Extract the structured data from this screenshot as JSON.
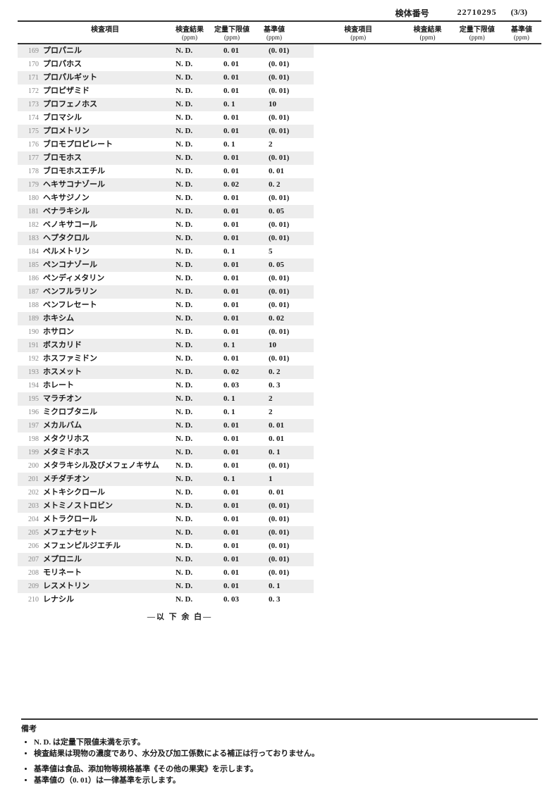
{
  "header": {
    "sampleLabel": "検体番号",
    "sampleNumber": "22710295",
    "page": "(3/3)"
  },
  "colHeaders": {
    "item": "検査項目",
    "result": "検査結果",
    "resultUnit": "(ppm)",
    "lower": "定量下限値",
    "lowerUnit": "(ppm)",
    "std": "基準値",
    "stdUnit": "(ppm)"
  },
  "blankEnd": "―以 下 余 白―",
  "rows": [
    {
      "n": "169",
      "name": "プロパニル",
      "res": "N. D.",
      "low": "0. 01",
      "std": "(0. 01)"
    },
    {
      "n": "170",
      "name": "プロパホス",
      "res": "N. D.",
      "low": "0. 01",
      "std": "(0. 01)"
    },
    {
      "n": "171",
      "name": "プロパルギット",
      "res": "N. D.",
      "low": "0. 01",
      "std": "(0. 01)"
    },
    {
      "n": "172",
      "name": "プロピザミド",
      "res": "N. D.",
      "low": "0. 01",
      "std": "(0. 01)"
    },
    {
      "n": "173",
      "name": "プロフェノホス",
      "res": "N. D.",
      "low": "0. 1",
      "std": "10"
    },
    {
      "n": "174",
      "name": "ブロマシル",
      "res": "N. D.",
      "low": "0. 01",
      "std": "(0. 01)"
    },
    {
      "n": "175",
      "name": "プロメトリン",
      "res": "N. D.",
      "low": "0. 01",
      "std": "(0. 01)"
    },
    {
      "n": "176",
      "name": "ブロモプロピレート",
      "res": "N. D.",
      "low": "0. 1",
      "std": "2"
    },
    {
      "n": "177",
      "name": "ブロモホス",
      "res": "N. D.",
      "low": "0. 01",
      "std": "(0. 01)"
    },
    {
      "n": "178",
      "name": "ブロモホスエチル",
      "res": "N. D.",
      "low": "0. 01",
      "std": "0. 01"
    },
    {
      "n": "179",
      "name": "ヘキサコナゾール",
      "res": "N. D.",
      "low": "0. 02",
      "std": "0. 2"
    },
    {
      "n": "180",
      "name": "ヘキサジノン",
      "res": "N. D.",
      "low": "0. 01",
      "std": "(0. 01)"
    },
    {
      "n": "181",
      "name": "ベナラキシル",
      "res": "N. D.",
      "low": "0. 01",
      "std": "0. 05"
    },
    {
      "n": "182",
      "name": "ベノキサコール",
      "res": "N. D.",
      "low": "0. 01",
      "std": "(0. 01)"
    },
    {
      "n": "183",
      "name": "ヘプタクロル",
      "res": "N. D.",
      "low": "0. 01",
      "std": "(0. 01)"
    },
    {
      "n": "184",
      "name": "ペルメトリン",
      "res": "N. D.",
      "low": "0. 1",
      "std": "5"
    },
    {
      "n": "185",
      "name": "ペンコナゾール",
      "res": "N. D.",
      "low": "0. 01",
      "std": "0. 05"
    },
    {
      "n": "186",
      "name": "ペンディメタリン",
      "res": "N. D.",
      "low": "0. 01",
      "std": "(0. 01)"
    },
    {
      "n": "187",
      "name": "ベンフルラリン",
      "res": "N. D.",
      "low": "0. 01",
      "std": "(0. 01)"
    },
    {
      "n": "188",
      "name": "ベンフレセート",
      "res": "N. D.",
      "low": "0. 01",
      "std": "(0. 01)"
    },
    {
      "n": "189",
      "name": "ホキシム",
      "res": "N. D.",
      "low": "0. 01",
      "std": "0. 02"
    },
    {
      "n": "190",
      "name": "ホサロン",
      "res": "N. D.",
      "low": "0. 01",
      "std": "(0. 01)"
    },
    {
      "n": "191",
      "name": "ボスカリド",
      "res": "N. D.",
      "low": "0. 1",
      "std": "10"
    },
    {
      "n": "192",
      "name": "ホスファミドン",
      "res": "N. D.",
      "low": "0. 01",
      "std": "(0. 01)"
    },
    {
      "n": "193",
      "name": "ホスメット",
      "res": "N. D.",
      "low": "0. 02",
      "std": "0. 2"
    },
    {
      "n": "194",
      "name": "ホレート",
      "res": "N. D.",
      "low": "0. 03",
      "std": "0. 3"
    },
    {
      "n": "195",
      "name": "マラチオン",
      "res": "N. D.",
      "low": "0. 1",
      "std": "2"
    },
    {
      "n": "196",
      "name": "ミクロブタニル",
      "res": "N. D.",
      "low": "0. 1",
      "std": "2"
    },
    {
      "n": "197",
      "name": "メカルバム",
      "res": "N. D.",
      "low": "0. 01",
      "std": "0. 01"
    },
    {
      "n": "198",
      "name": "メタクリホス",
      "res": "N. D.",
      "low": "0. 01",
      "std": "0. 01"
    },
    {
      "n": "199",
      "name": "メタミドホス",
      "res": "N. D.",
      "low": "0. 01",
      "std": "0. 1"
    },
    {
      "n": "200",
      "name": "メタラキシル及びメフェノキサム",
      "res": "N. D.",
      "low": "0. 01",
      "std": "(0. 01)"
    },
    {
      "n": "201",
      "name": "メチダチオン",
      "res": "N. D.",
      "low": "0. 1",
      "std": "1"
    },
    {
      "n": "202",
      "name": "メトキシクロール",
      "res": "N. D.",
      "low": "0. 01",
      "std": "0. 01"
    },
    {
      "n": "203",
      "name": "メトミノストロビン",
      "res": "N. D.",
      "low": "0. 01",
      "std": "(0. 01)"
    },
    {
      "n": "204",
      "name": "メトラクロール",
      "res": "N. D.",
      "low": "0. 01",
      "std": "(0. 01)"
    },
    {
      "n": "205",
      "name": "メフェナセット",
      "res": "N. D.",
      "low": "0. 01",
      "std": "(0. 01)"
    },
    {
      "n": "206",
      "name": "メフェンピルジエチル",
      "res": "N. D.",
      "low": "0. 01",
      "std": "(0. 01)"
    },
    {
      "n": "207",
      "name": "メプロニル",
      "res": "N. D.",
      "low": "0. 01",
      "std": "(0. 01)"
    },
    {
      "n": "208",
      "name": "モリネート",
      "res": "N. D.",
      "low": "0. 01",
      "std": "(0. 01)"
    },
    {
      "n": "209",
      "name": "レスメトリン",
      "res": "N. D.",
      "low": "0. 01",
      "std": "0. 1"
    },
    {
      "n": "210",
      "name": "レナシル",
      "res": "N. D.",
      "low": "0. 03",
      "std": "0. 3"
    }
  ],
  "footer": {
    "title": "備考",
    "group1": [
      "N. D. は定量下限値未満を示す。",
      "検査結果は現物の濃度であり、水分及び加工係数による補正は行っておりません。"
    ],
    "group2": [
      "基準値は食品、添加物等規格基準《その他の果実》を示します。",
      "基準値の（0. 01）は一律基準を示します。"
    ]
  }
}
